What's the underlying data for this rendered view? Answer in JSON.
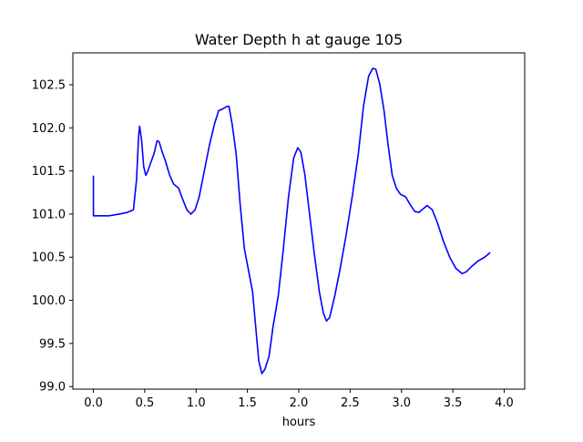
{
  "chart_data": {
    "type": "line",
    "title": "Water Depth h at gauge 105",
    "xlabel": "hours",
    "ylabel": "",
    "xlim": [
      -0.2,
      4.2
    ],
    "ylim": [
      98.97,
      102.87
    ],
    "x_ticks": [
      0.0,
      0.5,
      1.0,
      1.5,
      2.0,
      2.5,
      3.0,
      3.5,
      4.0
    ],
    "x_tick_labels": [
      "0.0",
      "0.5",
      "1.0",
      "1.5",
      "2.0",
      "2.5",
      "3.0",
      "3.5",
      "4.0"
    ],
    "y_ticks": [
      99.0,
      99.5,
      100.0,
      100.5,
      101.0,
      101.5,
      102.0,
      102.5
    ],
    "y_tick_labels": [
      "99.0",
      "99.5",
      "100.0",
      "100.5",
      "101.0",
      "101.5",
      "102.0",
      "102.5"
    ],
    "grid": false,
    "series": [
      {
        "color": "#0000ff",
        "points": [
          [
            0.0,
            101.44
          ],
          [
            0.0,
            100.98
          ],
          [
            0.05,
            100.98
          ],
          [
            0.15,
            100.98
          ],
          [
            0.25,
            101.0
          ],
          [
            0.33,
            101.02
          ],
          [
            0.39,
            101.05
          ],
          [
            0.42,
            101.4
          ],
          [
            0.44,
            101.9
          ],
          [
            0.45,
            102.02
          ],
          [
            0.47,
            101.85
          ],
          [
            0.49,
            101.55
          ],
          [
            0.51,
            101.45
          ],
          [
            0.53,
            101.5
          ],
          [
            0.56,
            101.6
          ],
          [
            0.59,
            101.7
          ],
          [
            0.62,
            101.85
          ],
          [
            0.64,
            101.84
          ],
          [
            0.67,
            101.72
          ],
          [
            0.7,
            101.62
          ],
          [
            0.74,
            101.46
          ],
          [
            0.78,
            101.35
          ],
          [
            0.83,
            101.3
          ],
          [
            0.87,
            101.17
          ],
          [
            0.91,
            101.05
          ],
          [
            0.95,
            101.0
          ],
          [
            0.99,
            101.05
          ],
          [
            1.03,
            101.2
          ],
          [
            1.08,
            101.5
          ],
          [
            1.13,
            101.8
          ],
          [
            1.18,
            102.05
          ],
          [
            1.22,
            102.2
          ],
          [
            1.26,
            102.22
          ],
          [
            1.3,
            102.25
          ],
          [
            1.32,
            102.25
          ],
          [
            1.35,
            102.05
          ],
          [
            1.39,
            101.7
          ],
          [
            1.43,
            101.1
          ],
          [
            1.47,
            100.6
          ],
          [
            1.51,
            100.35
          ],
          [
            1.55,
            100.1
          ],
          [
            1.58,
            99.7
          ],
          [
            1.61,
            99.3
          ],
          [
            1.64,
            99.15
          ],
          [
            1.67,
            99.2
          ],
          [
            1.71,
            99.35
          ],
          [
            1.75,
            99.7
          ],
          [
            1.8,
            100.05
          ],
          [
            1.85,
            100.6
          ],
          [
            1.9,
            101.2
          ],
          [
            1.95,
            101.65
          ],
          [
            1.99,
            101.77
          ],
          [
            2.02,
            101.72
          ],
          [
            2.06,
            101.45
          ],
          [
            2.1,
            101.05
          ],
          [
            2.15,
            100.55
          ],
          [
            2.2,
            100.1
          ],
          [
            2.24,
            99.85
          ],
          [
            2.27,
            99.76
          ],
          [
            2.3,
            99.8
          ],
          [
            2.35,
            100.05
          ],
          [
            2.4,
            100.35
          ],
          [
            2.46,
            100.75
          ],
          [
            2.52,
            101.2
          ],
          [
            2.58,
            101.7
          ],
          [
            2.63,
            102.25
          ],
          [
            2.68,
            102.6
          ],
          [
            2.72,
            102.69
          ],
          [
            2.75,
            102.68
          ],
          [
            2.79,
            102.5
          ],
          [
            2.83,
            102.2
          ],
          [
            2.87,
            101.8
          ],
          [
            2.91,
            101.45
          ],
          [
            2.95,
            101.3
          ],
          [
            2.99,
            101.23
          ],
          [
            3.04,
            101.2
          ],
          [
            3.09,
            101.1
          ],
          [
            3.13,
            101.03
          ],
          [
            3.17,
            101.02
          ],
          [
            3.21,
            101.06
          ],
          [
            3.25,
            101.1
          ],
          [
            3.3,
            101.05
          ],
          [
            3.35,
            100.9
          ],
          [
            3.41,
            100.68
          ],
          [
            3.47,
            100.5
          ],
          [
            3.53,
            100.37
          ],
          [
            3.59,
            100.31
          ],
          [
            3.63,
            100.33
          ],
          [
            3.69,
            100.4
          ],
          [
            3.75,
            100.46
          ],
          [
            3.81,
            100.5
          ],
          [
            3.86,
            100.55
          ]
        ]
      }
    ]
  }
}
